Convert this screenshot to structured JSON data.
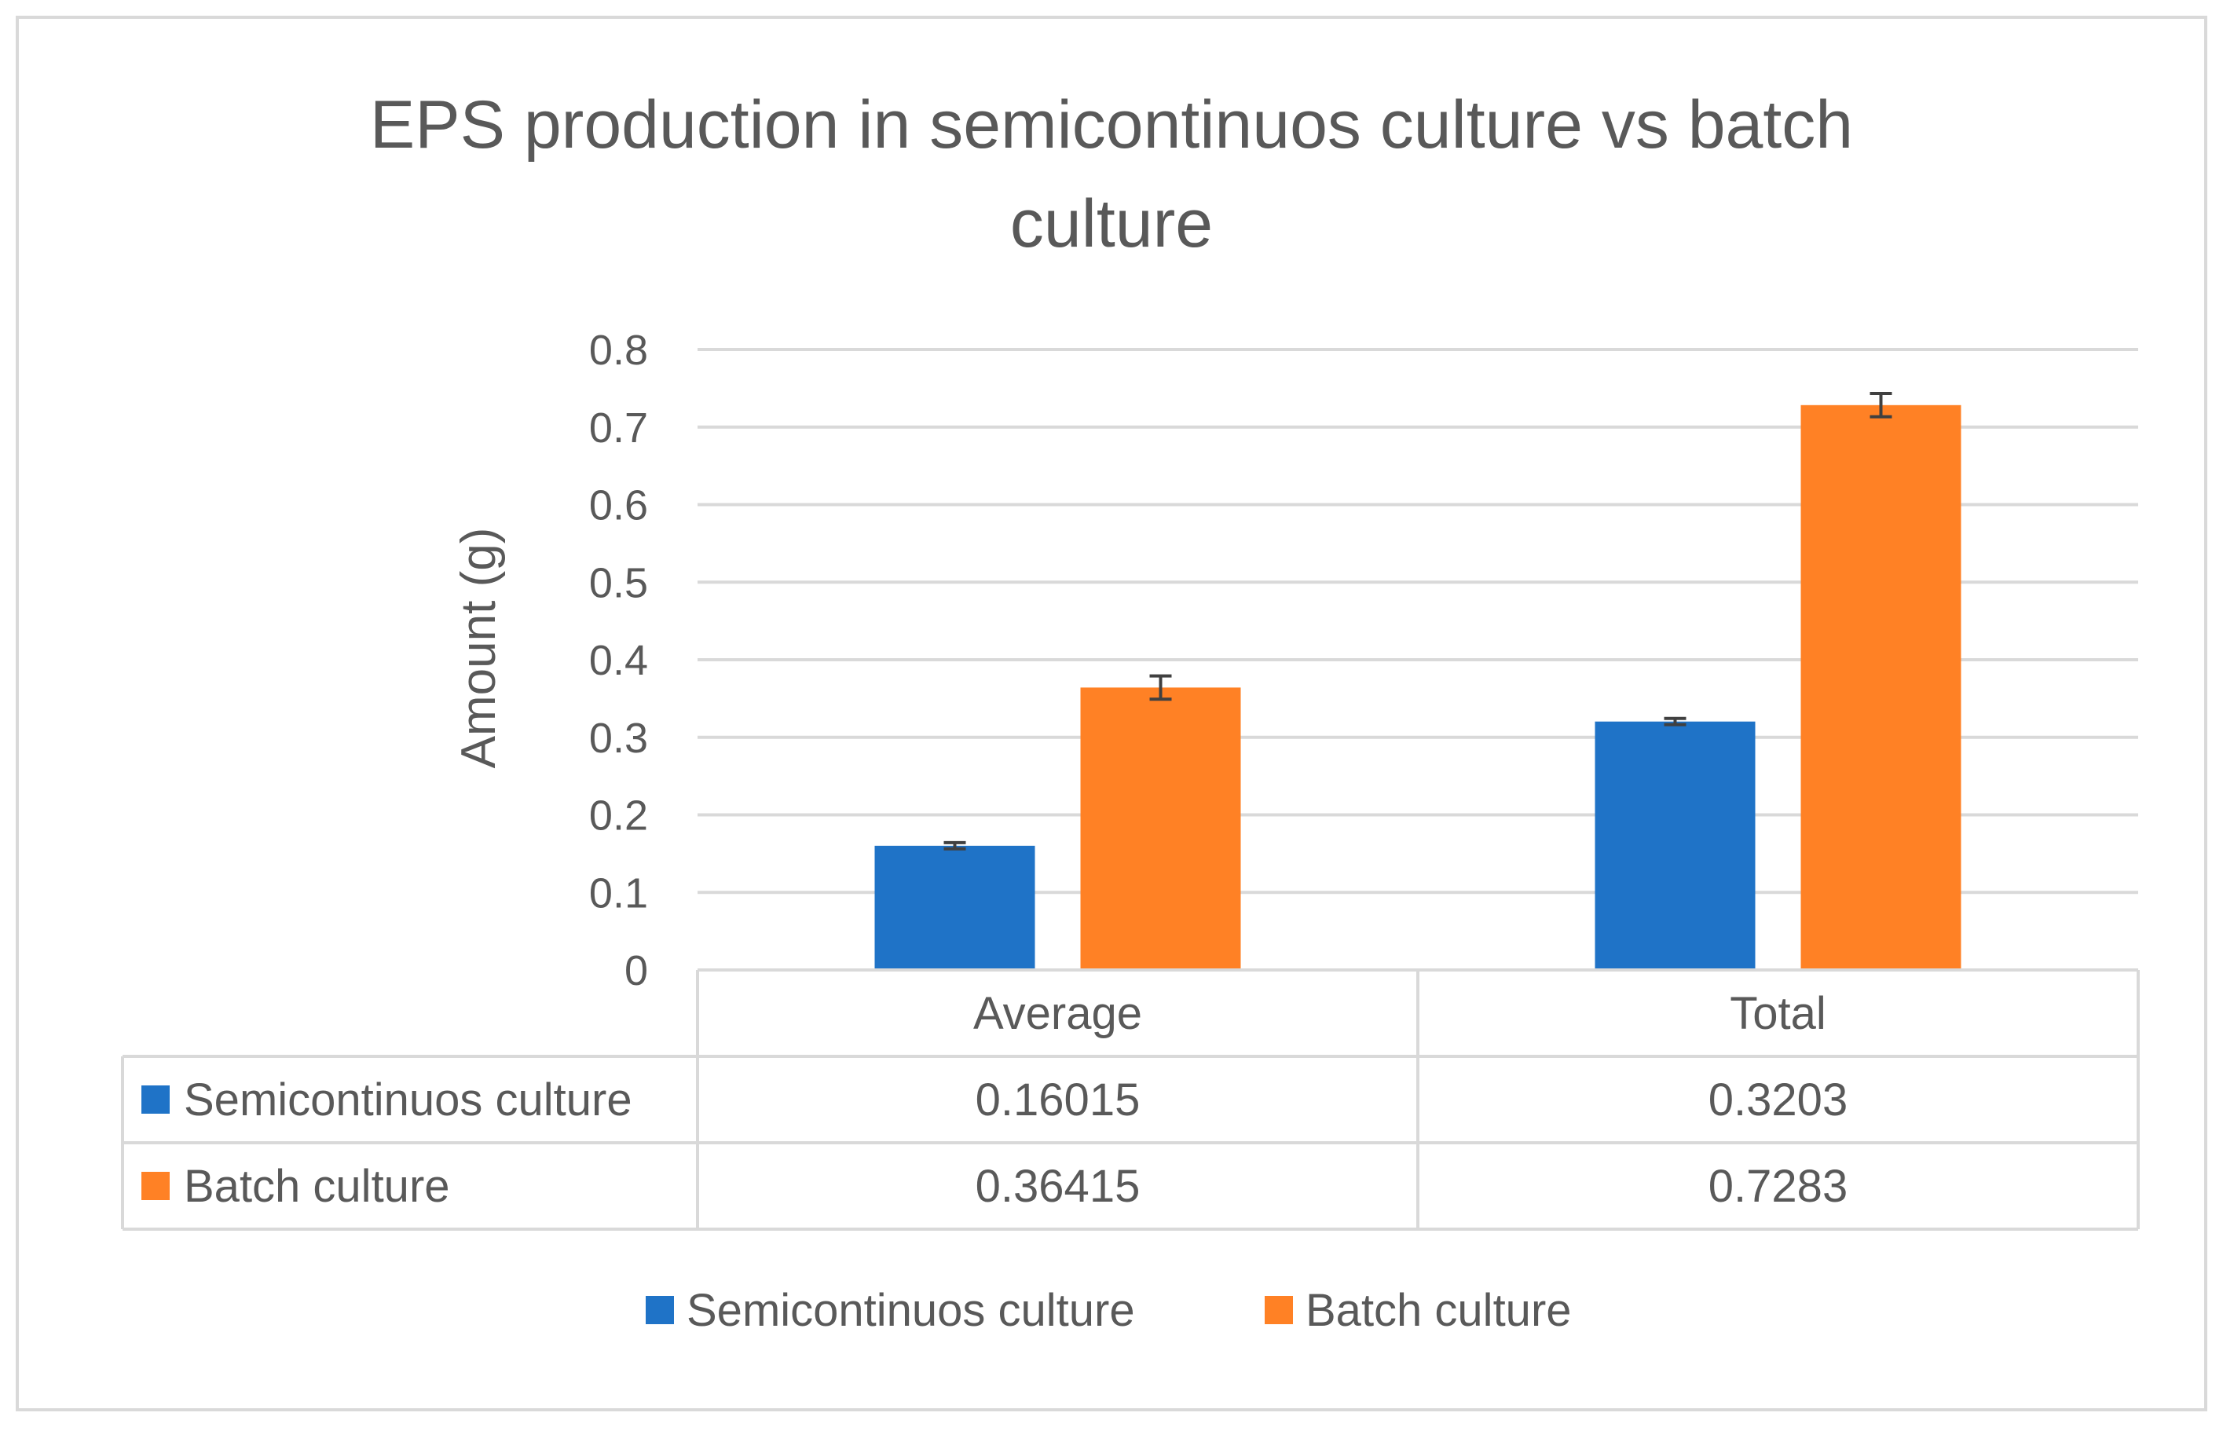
{
  "chart_data": {
    "type": "bar",
    "title": "EPS production in semicontinuos culture vs batch culture",
    "title_lines": [
      "EPS production in semicontinuos culture vs batch",
      "culture"
    ],
    "xlabel": "",
    "ylabel": "Amount (g)",
    "ylim": [
      0,
      0.8
    ],
    "yticks": [
      0,
      0.1,
      0.2,
      0.3,
      0.4,
      0.5,
      0.6,
      0.7,
      0.8
    ],
    "ytick_labels": [
      "0",
      "0.1",
      "0.2",
      "0.3",
      "0.4",
      "0.5",
      "0.6",
      "0.7",
      "0.8"
    ],
    "grid": true,
    "legend_position": "bottom",
    "data_table": true,
    "categories": [
      "Average",
      "Total"
    ],
    "series": [
      {
        "name": "Semicontinuos culture",
        "color": "#1f73c7",
        "values": [
          0.16015,
          0.3203
        ],
        "value_labels": [
          "0.16015",
          "0.3203"
        ],
        "errors": [
          0.004,
          0.004
        ]
      },
      {
        "name": "Batch culture",
        "color": "#ff8125",
        "values": [
          0.36415,
          0.7283
        ],
        "value_labels": [
          "0.36415",
          "0.7283"
        ],
        "errors": [
          0.015,
          0.015
        ]
      }
    ]
  }
}
